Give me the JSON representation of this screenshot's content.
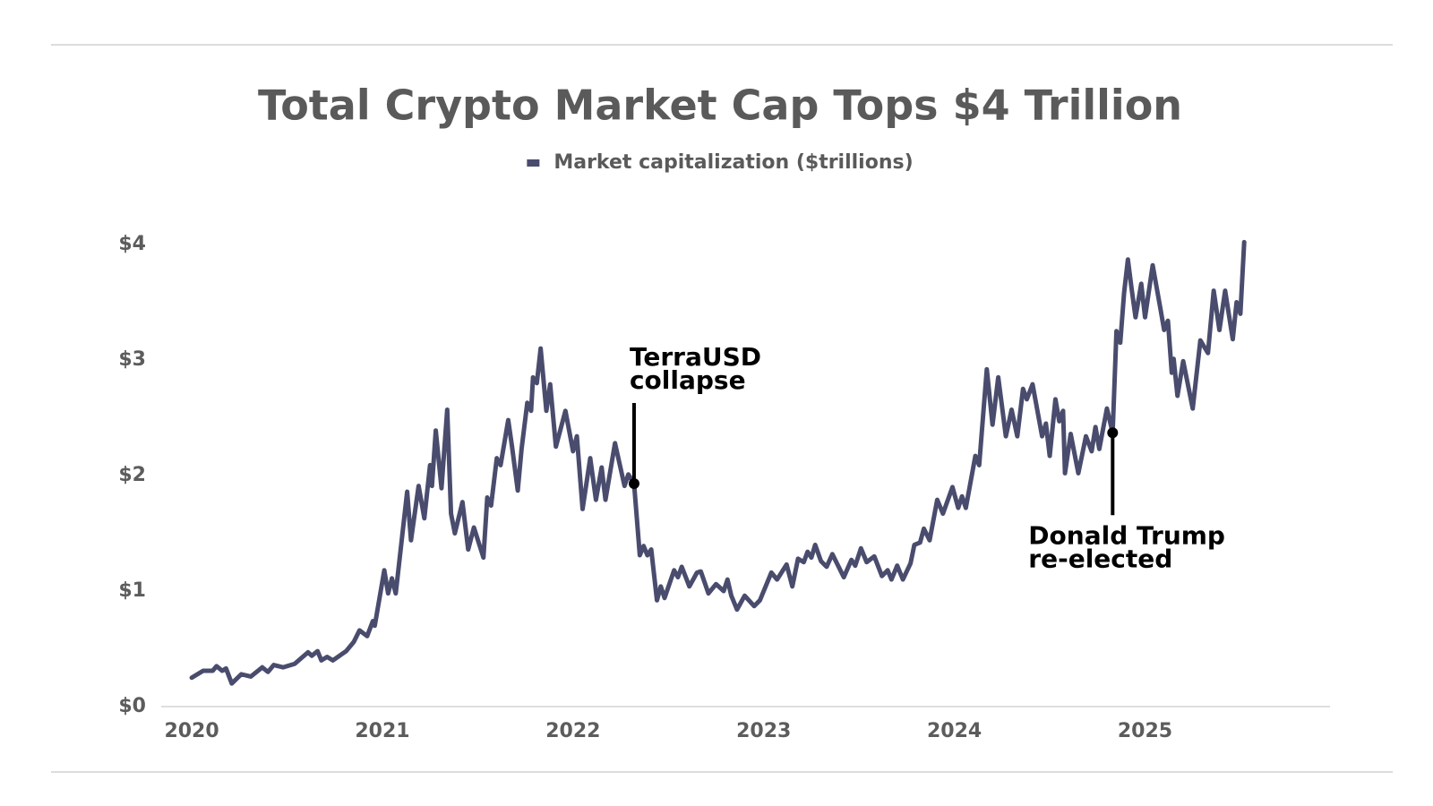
{
  "chart_data": {
    "type": "line",
    "title": "Total Crypto Market Cap Tops $4 Trillion",
    "legend": "top",
    "grid": false,
    "xlim": [
      2019.84,
      2025.97
    ],
    "xticks": [
      2020,
      2021,
      2022,
      2023,
      2024,
      2025
    ],
    "ylim": [
      0,
      4
    ],
    "yticks": [
      {
        "value": 0,
        "label": "$0"
      },
      {
        "value": 1,
        "label": "$1"
      },
      {
        "value": 2,
        "label": "$2"
      },
      {
        "value": 3,
        "label": "$3"
      },
      {
        "value": 4,
        "label": "$4"
      }
    ],
    "x": [
      2020.0,
      2020.06,
      2020.11,
      2020.13,
      2020.16,
      2020.18,
      2020.21,
      2020.26,
      2020.31,
      2020.37,
      2020.4,
      2020.43,
      2020.48,
      2020.54,
      2020.61,
      2020.63,
      2020.66,
      2020.68,
      2020.71,
      2020.74,
      2020.81,
      2020.85,
      2020.88,
      2020.92,
      2020.95,
      2020.96,
      2021.01,
      2021.03,
      2021.05,
      2021.07,
      2021.13,
      2021.15,
      2021.19,
      2021.22,
      2021.25,
      2021.26,
      2021.28,
      2021.31,
      2021.34,
      2021.36,
      2021.38,
      2021.42,
      2021.45,
      2021.48,
      2021.53,
      2021.55,
      2021.57,
      2021.6,
      2021.62,
      2021.66,
      2021.68,
      2021.71,
      2021.73,
      2021.76,
      2021.78,
      2021.79,
      2021.81,
      2021.83,
      2021.86,
      2021.88,
      2021.91,
      2021.96,
      2022.0,
      2022.02,
      2022.05,
      2022.09,
      2022.12,
      2022.15,
      2022.17,
      2022.22,
      2022.27,
      2022.29,
      2022.32,
      2022.35,
      2022.37,
      2022.39,
      2022.41,
      2022.44,
      2022.46,
      2022.48,
      2022.53,
      2022.55,
      2022.57,
      2022.61,
      2022.65,
      2022.67,
      2022.71,
      2022.75,
      2022.79,
      2022.81,
      2022.83,
      2022.86,
      2022.9,
      2022.95,
      2022.98,
      2023.04,
      2023.07,
      2023.12,
      2023.15,
      2023.18,
      2023.21,
      2023.23,
      2023.25,
      2023.27,
      2023.3,
      2023.33,
      2023.36,
      2023.42,
      2023.46,
      2023.48,
      2023.51,
      2023.54,
      2023.58,
      2023.62,
      2023.65,
      2023.67,
      2023.7,
      2023.73,
      2023.77,
      2023.79,
      2023.82,
      2023.84,
      2023.87,
      2023.91,
      2023.94,
      2023.99,
      2024.02,
      2024.04,
      2024.06,
      2024.11,
      2024.13,
      2024.17,
      2024.2,
      2024.23,
      2024.27,
      2024.3,
      2024.33,
      2024.36,
      2024.38,
      2024.41,
      2024.46,
      2024.48,
      2024.5,
      2024.53,
      2024.55,
      2024.57,
      2024.58,
      2024.61,
      2024.65,
      2024.69,
      2024.72,
      2024.74,
      2024.76,
      2024.8,
      2024.83,
      2024.85,
      2024.87,
      2024.89,
      2024.91,
      2024.93,
      2024.95,
      2024.98,
      2025.0,
      2025.04,
      2025.08,
      2025.1,
      2025.12,
      2025.14,
      2025.15,
      2025.17,
      2025.2,
      2025.25,
      2025.29,
      2025.33,
      2025.36,
      2025.39,
      2025.42,
      2025.46,
      2025.48,
      2025.5,
      2025.52
    ],
    "series": [
      {
        "name": "Market capitalization ($trillions)",
        "color": "#4a4c6e",
        "values": [
          0.25,
          0.31,
          0.31,
          0.35,
          0.31,
          0.33,
          0.2,
          0.28,
          0.26,
          0.34,
          0.3,
          0.36,
          0.34,
          0.37,
          0.47,
          0.44,
          0.48,
          0.4,
          0.43,
          0.4,
          0.48,
          0.56,
          0.66,
          0.61,
          0.74,
          0.7,
          1.18,
          0.98,
          1.11,
          0.98,
          1.86,
          1.44,
          1.91,
          1.63,
          2.09,
          1.91,
          2.39,
          1.89,
          2.57,
          1.67,
          1.5,
          1.77,
          1.36,
          1.55,
          1.29,
          1.81,
          1.74,
          2.15,
          2.09,
          2.48,
          2.25,
          1.87,
          2.23,
          2.63,
          2.56,
          2.85,
          2.8,
          3.1,
          2.56,
          2.79,
          2.25,
          2.56,
          2.21,
          2.34,
          1.71,
          2.15,
          1.79,
          2.07,
          1.79,
          2.28,
          1.91,
          2.01,
          1.93,
          1.31,
          1.39,
          1.31,
          1.36,
          0.92,
          1.04,
          0.94,
          1.18,
          1.12,
          1.21,
          1.04,
          1.16,
          1.17,
          0.98,
          1.06,
          1.0,
          1.1,
          0.96,
          0.84,
          0.96,
          0.87,
          0.92,
          1.16,
          1.1,
          1.23,
          1.04,
          1.28,
          1.25,
          1.34,
          1.29,
          1.4,
          1.26,
          1.21,
          1.32,
          1.12,
          1.27,
          1.22,
          1.37,
          1.25,
          1.3,
          1.13,
          1.18,
          1.1,
          1.22,
          1.1,
          1.24,
          1.4,
          1.42,
          1.54,
          1.44,
          1.79,
          1.67,
          1.9,
          1.72,
          1.82,
          1.72,
          2.17,
          2.09,
          2.92,
          2.44,
          2.85,
          2.34,
          2.57,
          2.34,
          2.75,
          2.66,
          2.79,
          2.34,
          2.45,
          2.17,
          2.66,
          2.47,
          2.56,
          2.02,
          2.36,
          2.02,
          2.34,
          2.21,
          2.42,
          2.23,
          2.58,
          2.37,
          3.25,
          3.15,
          3.58,
          3.87,
          3.61,
          3.37,
          3.66,
          3.37,
          3.82,
          3.45,
          3.26,
          3.34,
          2.89,
          3.01,
          2.69,
          2.99,
          2.58,
          3.17,
          3.06,
          3.6,
          3.26,
          3.6,
          3.18,
          3.5,
          3.4,
          4.02
        ]
      }
    ],
    "annotations": [
      {
        "lines": [
          "TerraUSD",
          "collapse"
        ],
        "x": 2022.32,
        "y": 1.93,
        "side": "above"
      },
      {
        "lines": [
          "Donald Trump",
          "re-elected"
        ],
        "x": 2024.83,
        "y": 2.37,
        "side": "below"
      }
    ]
  }
}
